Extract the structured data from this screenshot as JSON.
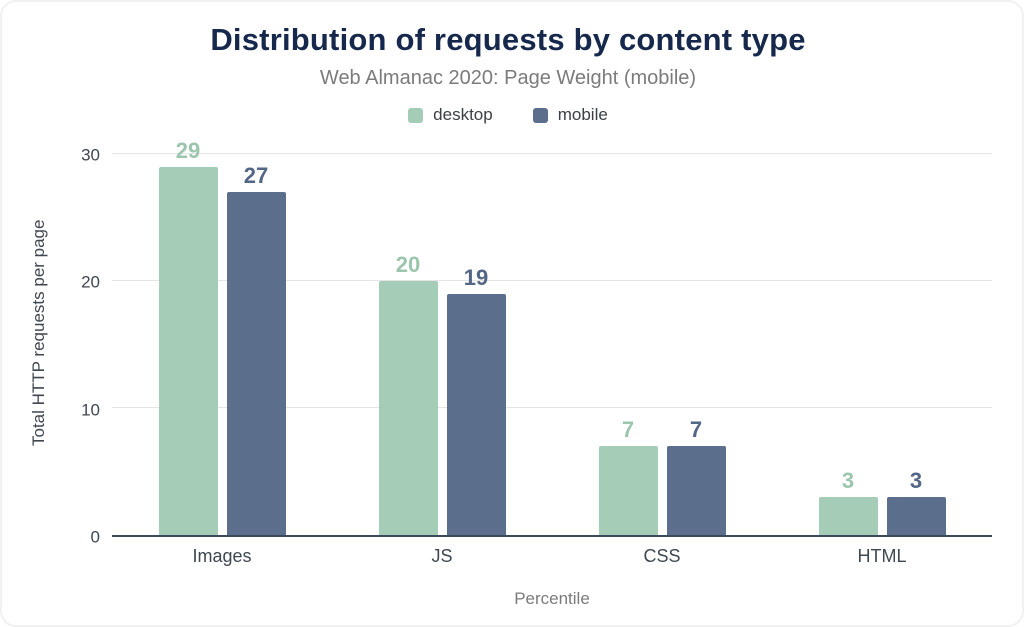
{
  "title": "Distribution of requests by content type",
  "subtitle": "Web Almanac 2020: Page Weight (mobile)",
  "chart_data": {
    "type": "bar",
    "title": "Distribution of requests by content type",
    "subtitle": "Web Almanac 2020: Page Weight (mobile)",
    "categories": [
      "Images",
      "JS",
      "CSS",
      "HTML"
    ],
    "series": [
      {
        "name": "desktop",
        "values": [
          29,
          20,
          7,
          3
        ],
        "color": "#a4ccb6",
        "label_color": "#9cc5ae"
      },
      {
        "name": "mobile",
        "values": [
          27,
          19,
          7,
          3
        ],
        "color": "#5b6e8c",
        "label_color": "#536685"
      }
    ],
    "xlabel": "Percentile",
    "ylabel": "Total HTTP requests per page",
    "yticks": [
      0,
      10,
      20,
      30
    ],
    "ylim": [
      0,
      32
    ],
    "grid": true,
    "legend_position": "top",
    "background": "#ffffff",
    "title_color": "#16294c",
    "subtitle_color": "#7b7b7b",
    "axis_line_color": "#3a4a5c"
  }
}
